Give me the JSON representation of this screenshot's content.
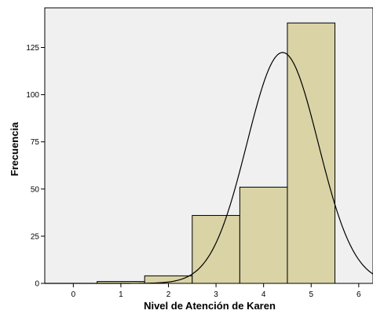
{
  "chart_data": {
    "type": "bar",
    "title": "",
    "xlabel": "Nivel de Atención de Karen",
    "ylabel": "Frecuencia",
    "xlim": [
      -0.6,
      6.3
    ],
    "ylim": [
      0,
      146
    ],
    "x_ticks": [
      0,
      1,
      2,
      3,
      4,
      5,
      6
    ],
    "y_ticks": [
      0,
      25,
      50,
      75,
      100,
      125
    ],
    "bin_width": 1,
    "bins": [
      {
        "center": 1,
        "value": 1
      },
      {
        "center": 2,
        "value": 4
      },
      {
        "center": 3,
        "value": 36
      },
      {
        "center": 4,
        "value": 51
      },
      {
        "center": 5,
        "value": 138
      }
    ],
    "normal_curve": {
      "mean": 4.4,
      "sd": 0.75,
      "n": 230
    },
    "grid": false,
    "legend": "none",
    "colors": {
      "plot_background": "#f0f0f0",
      "bar_fill": "#d9d3a6",
      "bar_stroke": "#000000",
      "curve": "#000000"
    }
  }
}
